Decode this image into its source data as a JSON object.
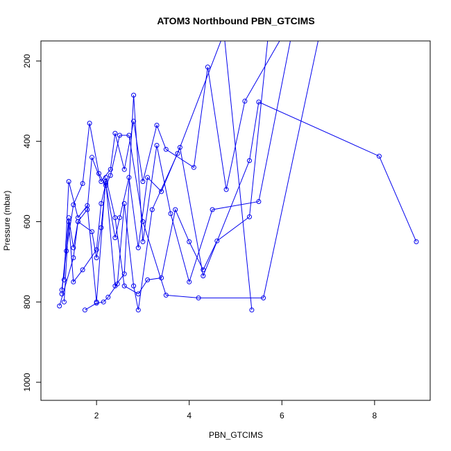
{
  "chart_data": {
    "type": "line",
    "title": "ATOM3 Northbound PBN_GTCIMS",
    "xlabel": "PBN_GTCIMS",
    "ylabel": "Pressure (mbar)",
    "xlim": [
      0.8,
      9.2
    ],
    "ylim": [
      1045,
      150
    ],
    "y_reversed": true,
    "x_ticks": [
      2,
      4,
      6,
      8
    ],
    "y_ticks": [
      200,
      400,
      600,
      800,
      1000
    ],
    "x_tick_labels": [
      "2",
      "4",
      "6",
      "8"
    ],
    "y_tick_labels": [
      "200",
      "400",
      "600",
      "800",
      "1000"
    ],
    "grid": false,
    "legend": "none",
    "marker": "open-circle",
    "color": "#0000ee",
    "note": "",
    "series": [
      {
        "x": [
          1.2,
          1.5,
          1.6,
          1.8,
          1.9,
          2.1,
          2.3,
          2.4,
          2.6,
          2.8,
          3.0,
          3.3,
          3.5,
          4.1,
          4.4,
          4.8,
          5.2,
          6.0
        ],
        "y": [
          810,
          690,
          600,
          570,
          440,
          500,
          470,
          380,
          470,
          350,
          500,
          360,
          420,
          465,
          215,
          520,
          300,
          140
        ]
      },
      {
        "x": [
          1.3,
          1.4,
          1.5,
          1.7,
          2.0,
          2.1,
          2.2,
          2.4,
          2.5,
          2.7,
          2.9,
          3.1,
          3.4,
          3.8,
          4.3,
          5.3,
          5.5,
          8.1,
          8.9
        ],
        "y": [
          800,
          600,
          750,
          720,
          670,
          555,
          505,
          640,
          590,
          490,
          665,
          490,
          525,
          415,
          735,
          448,
          302,
          437,
          650
        ]
      },
      {
        "x": [
          1.25,
          1.4,
          1.5,
          1.6,
          1.9,
          2.0,
          2.1,
          2.2,
          2.4,
          2.6,
          2.8,
          3.0,
          3.3,
          3.6,
          4.0,
          4.5,
          5.5,
          6.2
        ],
        "y": [
          780,
          590,
          665,
          600,
          625,
          690,
          615,
          500,
          760,
          730,
          285,
          650,
          410,
          580,
          750,
          570,
          550,
          140
        ]
      },
      {
        "x": [
          1.3,
          1.4,
          1.6,
          1.8,
          2.0,
          2.2,
          2.4,
          2.6,
          2.9,
          3.1,
          3.4,
          3.7,
          4.0,
          4.3,
          4.6,
          5.3,
          5.7
        ],
        "y": [
          745,
          500,
          590,
          560,
          800,
          490,
          590,
          760,
          780,
          745,
          740,
          570,
          650,
          720,
          648,
          588,
          140
        ]
      },
      {
        "x": [
          1.25,
          1.35,
          1.5,
          1.7,
          1.85,
          2.05,
          2.2,
          2.3,
          2.5,
          2.7,
          3.0,
          3.5,
          4.2,
          5.6,
          6.8
        ],
        "y": [
          770,
          673,
          558,
          505,
          355,
          480,
          510,
          485,
          385,
          385,
          600,
          783,
          790,
          790,
          140
        ]
      },
      {
        "x": [
          1.75,
          2.0,
          2.15,
          2.25,
          2.45,
          2.6,
          2.8,
          2.9,
          3.2,
          3.75,
          4.75,
          5.35
        ],
        "y": [
          820,
          803,
          800,
          788,
          755,
          555,
          760,
          820,
          570,
          430,
          130,
          820
        ]
      }
    ]
  }
}
